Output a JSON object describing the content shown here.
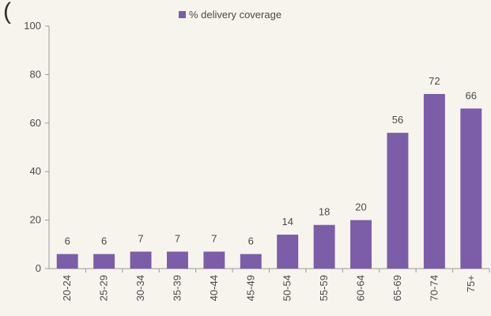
{
  "chart_data": {
    "type": "bar",
    "title_fragment": "(",
    "categories": [
      "20-24",
      "25-29",
      "30-34",
      "35-39",
      "40-44",
      "45-49",
      "50-54",
      "55-59",
      "60-64",
      "65-69",
      "70-74",
      "75+"
    ],
    "series": [
      {
        "name": "% delivery coverage",
        "values": [
          6,
          6,
          7,
          7,
          7,
          6,
          14,
          18,
          20,
          56,
          72,
          66
        ],
        "color": "#7b5ea7"
      }
    ],
    "ylim": [
      0,
      100
    ],
    "yticks": [
      "0",
      "20",
      "40",
      "60",
      "80",
      "100"
    ],
    "data_labels": [
      "6",
      "6",
      "7",
      "7",
      "7",
      "6",
      "14",
      "18",
      "20",
      "56",
      "72",
      "66"
    ],
    "legend_position": "top",
    "grid": false
  }
}
